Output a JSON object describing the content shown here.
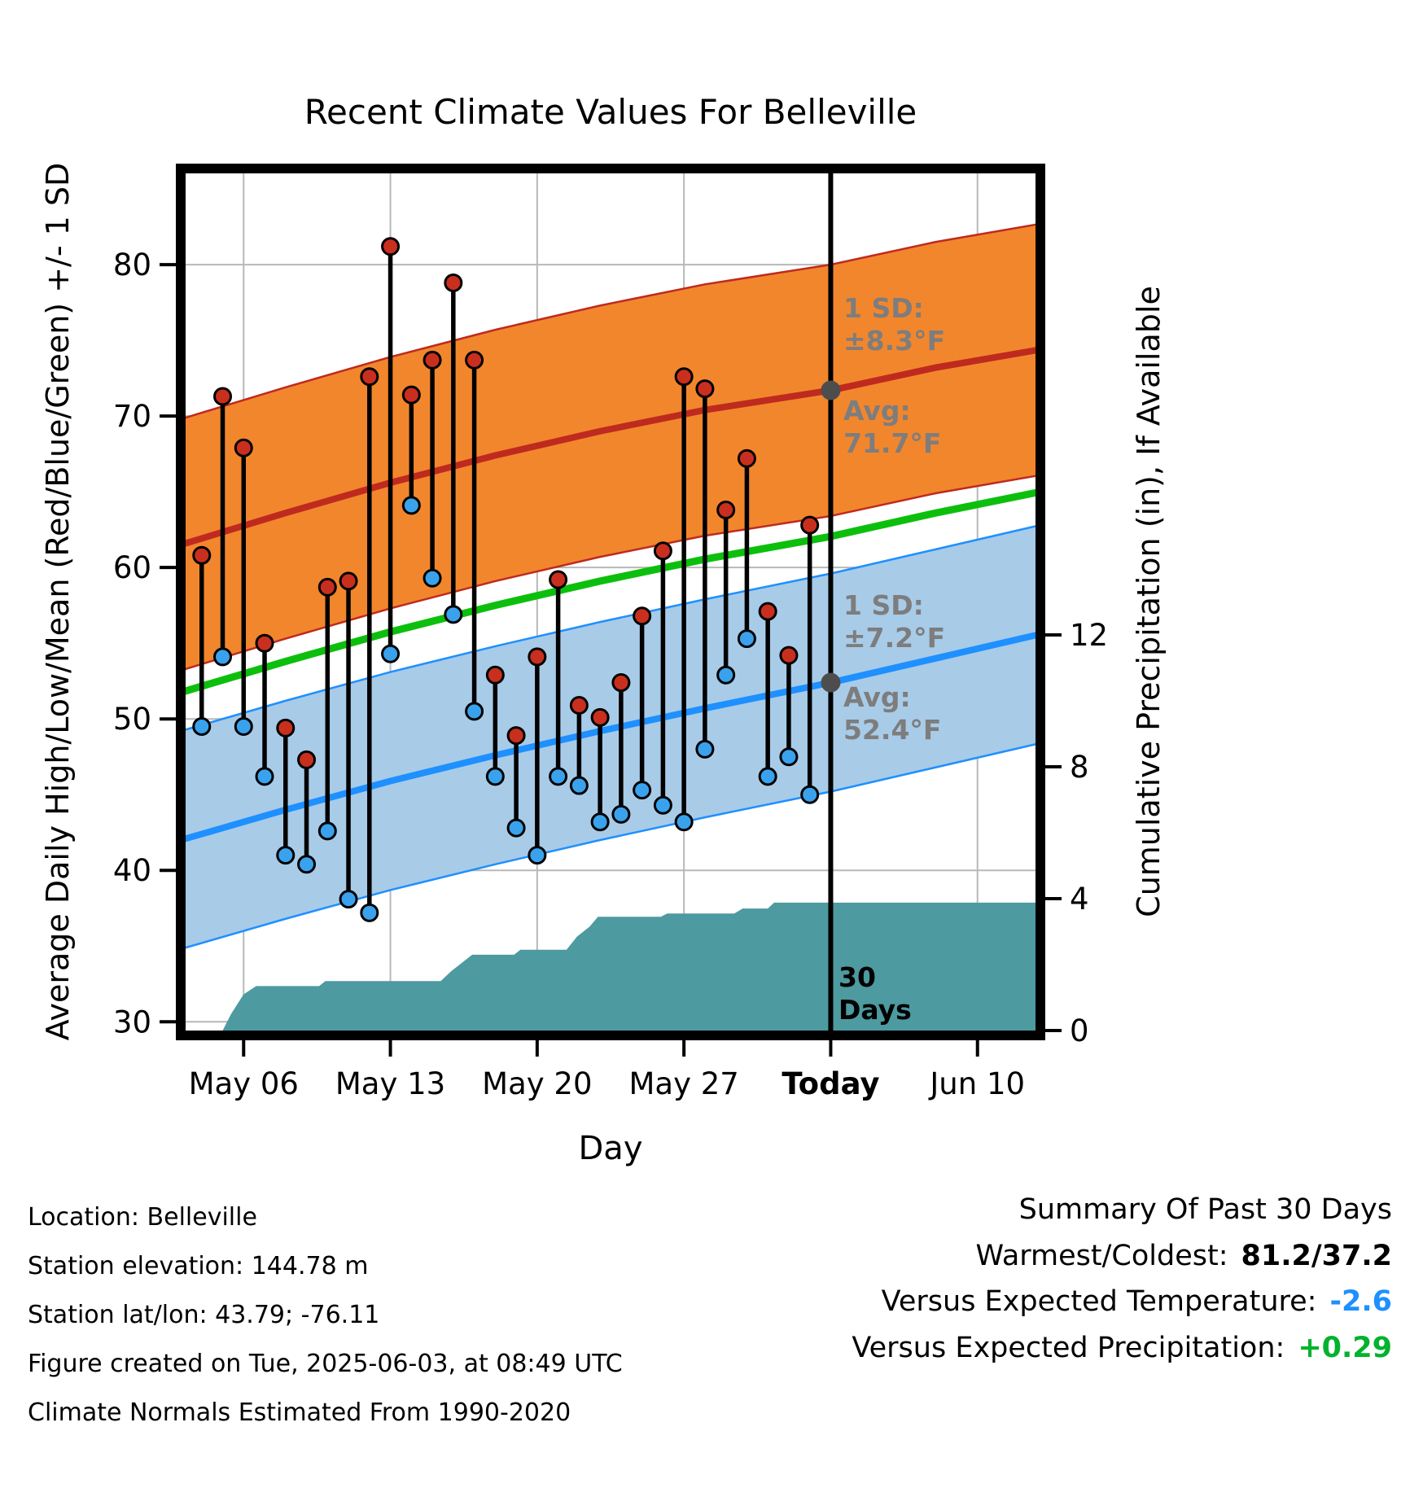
{
  "title": "Recent Climate Values For Belleville",
  "axes": {
    "x_ticks": [
      {
        "label": "May 06",
        "day": 3
      },
      {
        "label": "May 13",
        "day": 10
      },
      {
        "label": "May 20",
        "day": 17
      },
      {
        "label": "May 27",
        "day": 24
      },
      {
        "label": "Today",
        "day": 31,
        "bold": true
      },
      {
        "label": "Jun 10",
        "day": 38
      }
    ],
    "y_left_ticks": [
      30,
      40,
      50,
      60,
      70,
      80
    ],
    "y_right_ticks": [
      0,
      4,
      8,
      12
    ]
  },
  "chart_data": {
    "type": "line",
    "subtype": "climate-stem-with-normals-bands-and-cumulative-precip",
    "title": "Recent Climate Values For Belleville",
    "xlabel": "Day",
    "ylabel_left": "Average Daily High/Low/Mean (Red/Blue/Green) +/- 1 SD",
    "ylabel_right": "Cumulative Precipitation (in), If Available",
    "ylim_left": [
      29.1,
      86.35
    ],
    "x_domain_days": 41,
    "x_day0_date": "May 03",
    "dates": [
      "May 04",
      "May 05",
      "May 06",
      "May 07",
      "May 08",
      "May 09",
      "May 10",
      "May 11",
      "May 12",
      "May 13",
      "May 14",
      "May 15",
      "May 16",
      "May 17",
      "May 18",
      "May 19",
      "May 20",
      "May 21",
      "May 22",
      "May 23",
      "May 24",
      "May 25",
      "May 26",
      "May 27",
      "May 28",
      "May 29",
      "May 30",
      "May 31",
      "Jun 01",
      "Jun 02"
    ],
    "daily_high": [
      60.8,
      71.3,
      67.9,
      55.0,
      49.4,
      47.3,
      58.7,
      59.1,
      72.6,
      81.2,
      71.4,
      73.7,
      78.8,
      73.7,
      52.9,
      48.9,
      54.1,
      59.2,
      50.9,
      50.1,
      52.4,
      56.8,
      61.1,
      72.6,
      71.8,
      63.8,
      67.2,
      57.1,
      54.2,
      62.8
    ],
    "daily_low": [
      49.5,
      54.1,
      49.5,
      46.2,
      41.0,
      40.4,
      42.6,
      38.1,
      37.2,
      54.3,
      64.1,
      59.3,
      56.9,
      50.5,
      46.2,
      42.8,
      41.0,
      46.2,
      45.6,
      43.2,
      43.7,
      45.3,
      44.3,
      43.2,
      48.0,
      52.9,
      55.3,
      46.2,
      47.5,
      45.0
    ],
    "normals": {
      "days": [
        0,
        5,
        10,
        15,
        20,
        25,
        31,
        36,
        41
      ],
      "high_avg": [
        61.5,
        63.6,
        65.6,
        67.4,
        69.0,
        70.4,
        71.7,
        73.2,
        74.4
      ],
      "low_avg": [
        42.0,
        44.0,
        45.9,
        47.6,
        49.2,
        50.7,
        52.4,
        54.0,
        55.6
      ],
      "high_sd": 8.3,
      "low_sd": 7.2,
      "today_high_avg": 71.7,
      "today_low_avg": 52.4,
      "today_day": 31
    },
    "precip_cumulative": {
      "unit": "in",
      "days": [
        2.0,
        2.4,
        3.0,
        3.6,
        6.6,
        6.9,
        12.4,
        12.9,
        13.4,
        13.9,
        15.9,
        16.2,
        18.4,
        18.9,
        19.5,
        19.9,
        22.9,
        23.2,
        26.4,
        26.8,
        28.0,
        28.3,
        41
      ],
      "values": [
        0,
        0.5,
        1.1,
        1.35,
        1.35,
        1.5,
        1.5,
        1.8,
        2.05,
        2.3,
        2.3,
        2.45,
        2.45,
        2.85,
        3.15,
        3.45,
        3.45,
        3.55,
        3.55,
        3.7,
        3.7,
        3.88,
        3.88
      ]
    }
  },
  "annotations": {
    "high_sd": [
      "1 SD:",
      "±8.3°F"
    ],
    "high_avg": [
      "Avg:",
      "71.7°F"
    ],
    "low_sd": [
      "1 SD:",
      "±7.2°F"
    ],
    "low_avg": [
      "Avg:",
      "52.4°F"
    ],
    "today_marker": [
      "30",
      "Days"
    ]
  },
  "footer": {
    "location": "Location: Belleville",
    "elevation": "Station elevation: 144.78 m",
    "latlon": "Station lat/lon: 43.79; -76.11",
    "created": "Figure created on Tue, 2025-06-03, at 08:49 UTC",
    "normals_note": "Climate Normals Estimated From 1990-2020"
  },
  "summary": {
    "title": "Summary Of Past 30 Days",
    "rows": [
      {
        "label": "Warmest/Coldest:",
        "value": "81.2/37.2",
        "color": "#000000"
      },
      {
        "label": "Versus Expected Temperature:",
        "value": "-2.6",
        "color": "#1e90ff"
      },
      {
        "label": "Versus Expected Precipitation:",
        "value": "+0.29",
        "color": "#00b22d"
      }
    ]
  },
  "colors": {
    "high_band": "#f2862d",
    "high_line": "#bf2a1f",
    "high_dot": "#c92f1e",
    "low_band": "#a8cbe8",
    "low_line": "#1e90ff",
    "low_dot": "#3aa2ec",
    "mean_line": "#0dbf0d",
    "precip_fill": "#4d9aa0",
    "stem": "#000000",
    "gray_marker": "#4d4d4d",
    "annotation_text": "#7d7d7d",
    "grid": "#b8b8b8",
    "temp_anomaly": "#1e90ff",
    "precip_anomaly": "#00b22d"
  }
}
